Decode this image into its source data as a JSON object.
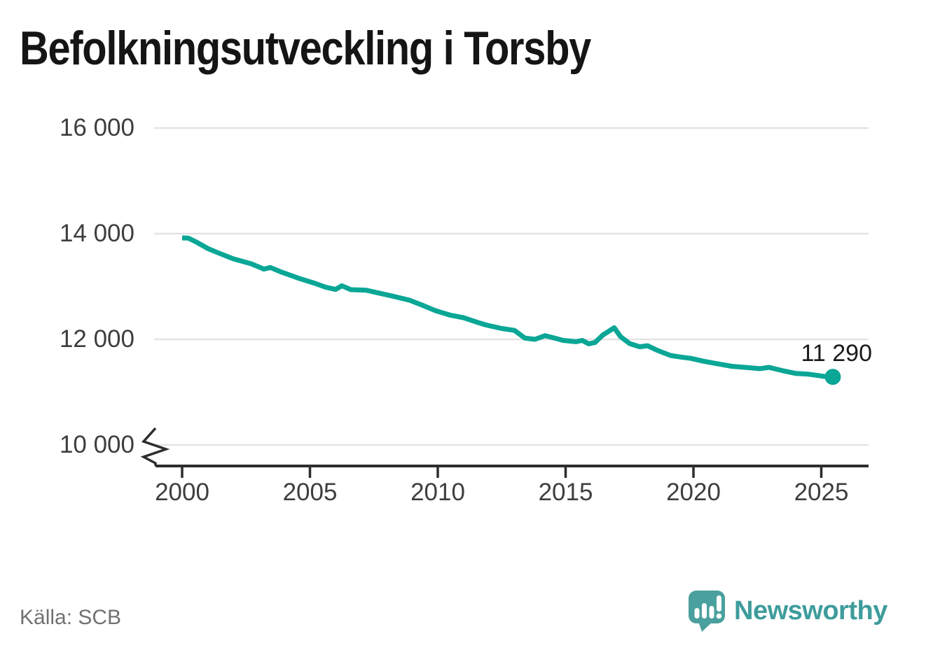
{
  "source": "Källa: SCB",
  "branding": {
    "name": "Newsworthy"
  },
  "colors": {
    "accent": "#0aa696",
    "logo_bubble": "#4aa09e",
    "logo_text": "#3e9c9c",
    "grid": "#e3e3e3",
    "axis": "#2d2d2d",
    "tick_label": "#3e3e3e",
    "muted_text": "#717171"
  },
  "chart_data": {
    "type": "line",
    "title": "Befolkningsutveckling i Torsby",
    "xlabel": "",
    "ylabel": "",
    "grid": "horizontal",
    "axis_break": true,
    "ylim": [
      10000,
      16000
    ],
    "xlim": [
      2000,
      2026
    ],
    "line_color": "#0aa696",
    "end_label": "11 290",
    "end_value": 11290,
    "legend": "none",
    "y_ticks": [
      {
        "value": 16000,
        "label": "16 000"
      },
      {
        "value": 14000,
        "label": "14 000"
      },
      {
        "value": 12000,
        "label": "12 000"
      },
      {
        "value": 10000,
        "label": "10 000"
      }
    ],
    "x_ticks": [
      {
        "value": 2000,
        "label": "2000"
      },
      {
        "value": 2005,
        "label": "2005"
      },
      {
        "value": 2010,
        "label": "2010"
      },
      {
        "value": 2015,
        "label": "2015"
      },
      {
        "value": 2020,
        "label": "2020"
      },
      {
        "value": 2025,
        "label": "2025"
      }
    ],
    "series": [
      {
        "name": "Torsby",
        "points": [
          [
            2000.0,
            13920
          ],
          [
            2000.25,
            13915
          ],
          [
            2000.6,
            13830
          ],
          [
            2001.0,
            13720
          ],
          [
            2001.4,
            13640
          ],
          [
            2002.0,
            13525
          ],
          [
            2002.7,
            13430
          ],
          [
            2003.2,
            13330
          ],
          [
            2003.45,
            13360
          ],
          [
            2003.9,
            13270
          ],
          [
            2004.6,
            13150
          ],
          [
            2005.2,
            13060
          ],
          [
            2005.6,
            12990
          ],
          [
            2006.0,
            12945
          ],
          [
            2006.25,
            13015
          ],
          [
            2006.6,
            12940
          ],
          [
            2007.2,
            12930
          ],
          [
            2007.8,
            12865
          ],
          [
            2008.3,
            12810
          ],
          [
            2008.9,
            12740
          ],
          [
            2009.4,
            12645
          ],
          [
            2009.9,
            12545
          ],
          [
            2010.5,
            12455
          ],
          [
            2011.0,
            12410
          ],
          [
            2011.5,
            12330
          ],
          [
            2011.9,
            12270
          ],
          [
            2012.5,
            12205
          ],
          [
            2013.0,
            12170
          ],
          [
            2013.4,
            12025
          ],
          [
            2013.8,
            12000
          ],
          [
            2014.2,
            12070
          ],
          [
            2014.6,
            12020
          ],
          [
            2014.9,
            11980
          ],
          [
            2015.4,
            11955
          ],
          [
            2015.65,
            11980
          ],
          [
            2015.9,
            11915
          ],
          [
            2016.15,
            11940
          ],
          [
            2016.45,
            12080
          ],
          [
            2016.9,
            12220
          ],
          [
            2017.15,
            12050
          ],
          [
            2017.5,
            11920
          ],
          [
            2017.9,
            11860
          ],
          [
            2018.2,
            11880
          ],
          [
            2018.6,
            11790
          ],
          [
            2019.1,
            11695
          ],
          [
            2019.5,
            11665
          ],
          [
            2019.9,
            11640
          ],
          [
            2020.4,
            11585
          ],
          [
            2020.9,
            11540
          ],
          [
            2021.5,
            11490
          ],
          [
            2022.0,
            11470
          ],
          [
            2022.6,
            11445
          ],
          [
            2022.95,
            11470
          ],
          [
            2023.5,
            11405
          ],
          [
            2024.0,
            11355
          ],
          [
            2024.5,
            11340
          ],
          [
            2024.8,
            11320
          ],
          [
            2025.1,
            11300
          ],
          [
            2025.45,
            11290
          ]
        ]
      }
    ]
  }
}
